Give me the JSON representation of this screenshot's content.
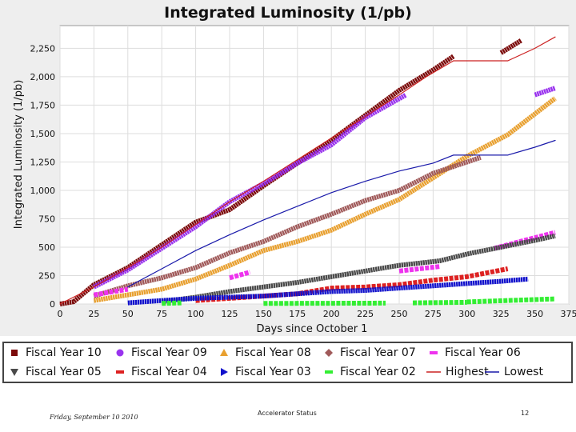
{
  "chart_data": {
    "type": "line",
    "title": "Integrated Luminosity (1/pb)",
    "xlabel": "Days since October 1",
    "ylabel": "Integrated Luminosity (1/pb)",
    "xlim": [
      0,
      375
    ],
    "ylim": [
      0,
      2450
    ],
    "x_ticks": [
      0,
      25,
      50,
      75,
      100,
      125,
      150,
      175,
      200,
      225,
      250,
      275,
      300,
      325,
      350,
      375
    ],
    "y_ticks": [
      0,
      250,
      500,
      750,
      1000,
      1250,
      1500,
      1750,
      2000,
      2250
    ],
    "x_tick_labels": [
      "0",
      "25",
      "50",
      "75",
      "100",
      "125",
      "150",
      "175",
      "200",
      "225",
      "250",
      "275",
      "300",
      "325",
      "350",
      "375"
    ],
    "y_tick_labels": [
      "0",
      "250",
      "500",
      "750",
      "1,000",
      "1,250",
      "1,500",
      "1,750",
      "2,000",
      "2,250"
    ],
    "series": [
      {
        "name": "Fiscal Year 10",
        "color": "#7b0a0a",
        "marker": "square",
        "segments": [
          [
            [
              0,
              0
            ],
            [
              10,
              20
            ],
            [
              25,
              170
            ],
            [
              50,
              320
            ],
            [
              75,
              520
            ],
            [
              100,
              720
            ],
            [
              125,
              830
            ],
            [
              150,
              1040
            ],
            [
              175,
              1240
            ],
            [
              200,
              1440
            ],
            [
              225,
              1660
            ],
            [
              250,
              1880
            ],
            [
              275,
              2060
            ],
            [
              290,
              2180
            ]
          ],
          [
            [
              325,
              2210
            ],
            [
              340,
              2320
            ]
          ]
        ]
      },
      {
        "name": "Fiscal Year 09",
        "color": "#9933ee",
        "marker": "circle",
        "segments": [
          [
            [
              25,
              150
            ],
            [
              50,
              300
            ],
            [
              75,
              490
            ],
            [
              100,
              680
            ],
            [
              125,
              900
            ],
            [
              150,
              1060
            ],
            [
              175,
              1240
            ],
            [
              200,
              1400
            ],
            [
              225,
              1640
            ],
            [
              255,
              1840
            ]
          ],
          [
            [
              350,
              1840
            ],
            [
              365,
              1900
            ]
          ]
        ]
      },
      {
        "name": "Fiscal Year 08",
        "color": "#e8a030",
        "marker": "triangle",
        "segments": [
          [
            [
              25,
              30
            ],
            [
              75,
              130
            ],
            [
              100,
              220
            ],
            [
              125,
              340
            ],
            [
              150,
              470
            ],
            [
              175,
              550
            ],
            [
              200,
              650
            ],
            [
              225,
              790
            ],
            [
              250,
              920
            ],
            [
              300,
              1300
            ],
            [
              330,
              1490
            ],
            [
              365,
              1810
            ]
          ]
        ]
      },
      {
        "name": "Fiscal Year 07",
        "color": "#a05a5a",
        "marker": "diamond",
        "segments": [
          [
            [
              25,
              70
            ],
            [
              50,
              160
            ],
            [
              75,
              230
            ],
            [
              100,
              320
            ],
            [
              125,
              450
            ],
            [
              150,
              550
            ],
            [
              175,
              680
            ],
            [
              200,
              790
            ],
            [
              225,
              910
            ],
            [
              250,
              1000
            ],
            [
              275,
              1150
            ],
            [
              310,
              1290
            ]
          ]
        ]
      },
      {
        "name": "Fiscal Year 06",
        "color": "#ee33ee",
        "marker": "dash",
        "segments": [
          [
            [
              25,
              80
            ],
            [
              50,
              130
            ]
          ],
          [
            [
              125,
              230
            ],
            [
              140,
              280
            ]
          ],
          [
            [
              250,
              290
            ],
            [
              280,
              330
            ]
          ],
          [
            [
              320,
              490
            ],
            [
              365,
              630
            ]
          ]
        ]
      },
      {
        "name": "Fiscal Year 05",
        "color": "#4a4a4a",
        "marker": "triangle-down",
        "segments": [
          [
            [
              75,
              20
            ],
            [
              100,
              60
            ],
            [
              125,
              110
            ],
            [
              150,
              150
            ],
            [
              175,
              190
            ],
            [
              200,
              240
            ],
            [
              225,
              290
            ],
            [
              250,
              340
            ],
            [
              280,
              380
            ],
            [
              300,
              440
            ],
            [
              325,
              500
            ],
            [
              350,
              560
            ],
            [
              365,
              600
            ]
          ]
        ]
      },
      {
        "name": "Fiscal Year 04",
        "color": "#dd2222",
        "marker": "dash",
        "segments": [
          [
            [
              100,
              30
            ],
            [
              150,
              70
            ],
            [
              175,
              90
            ],
            [
              200,
              140
            ],
            [
              225,
              150
            ],
            [
              250,
              170
            ],
            [
              275,
              210
            ],
            [
              300,
              240
            ],
            [
              330,
              310
            ]
          ]
        ]
      },
      {
        "name": "Fiscal Year 03",
        "color": "#1111cc",
        "marker": "triangle-right",
        "segments": [
          [
            [
              50,
              10
            ],
            [
              75,
              30
            ],
            [
              100,
              50
            ],
            [
              125,
              60
            ],
            [
              150,
              70
            ],
            [
              175,
              90
            ],
            [
              200,
              110
            ],
            [
              225,
              120
            ],
            [
              250,
              140
            ],
            [
              275,
              160
            ],
            [
              300,
              180
            ],
            [
              325,
              200
            ],
            [
              345,
              220
            ]
          ]
        ]
      },
      {
        "name": "Fiscal Year 02",
        "color": "#33ee33",
        "marker": "dash",
        "segments": [
          [
            [
              75,
              5
            ],
            [
              90,
              10
            ]
          ],
          [
            [
              150,
              5
            ],
            [
              240,
              8
            ]
          ],
          [
            [
              260,
              10
            ],
            [
              300,
              15
            ]
          ],
          [
            [
              300,
              18
            ],
            [
              365,
              45
            ]
          ]
        ]
      },
      {
        "name": "Highest",
        "color": "#cc2222",
        "marker": "line",
        "segments": [
          [
            [
              0,
              0
            ],
            [
              25,
              150
            ],
            [
              50,
              320
            ],
            [
              75,
              500
            ],
            [
              100,
              700
            ],
            [
              125,
              900
            ],
            [
              150,
              1080
            ],
            [
              175,
              1270
            ],
            [
              200,
              1460
            ],
            [
              225,
              1650
            ],
            [
              250,
              1840
            ],
            [
              270,
              2000
            ],
            [
              290,
              2140
            ],
            [
              330,
              2140
            ],
            [
              350,
              2250
            ],
            [
              365,
              2350
            ]
          ]
        ]
      },
      {
        "name": "Lowest",
        "color": "#1a1aaa",
        "marker": "line",
        "segments": [
          [
            [
              50,
              150
            ],
            [
              75,
              310
            ],
            [
              100,
              470
            ],
            [
              125,
              610
            ],
            [
              150,
              740
            ],
            [
              175,
              860
            ],
            [
              200,
              980
            ],
            [
              225,
              1080
            ],
            [
              250,
              1170
            ],
            [
              275,
              1240
            ],
            [
              290,
              1310
            ],
            [
              330,
              1310
            ],
            [
              350,
              1380
            ],
            [
              365,
              1440
            ]
          ]
        ]
      }
    ]
  },
  "footer": {
    "date": "Friday, September 10 2010",
    "title": "Accelerator Status",
    "page": "12"
  }
}
